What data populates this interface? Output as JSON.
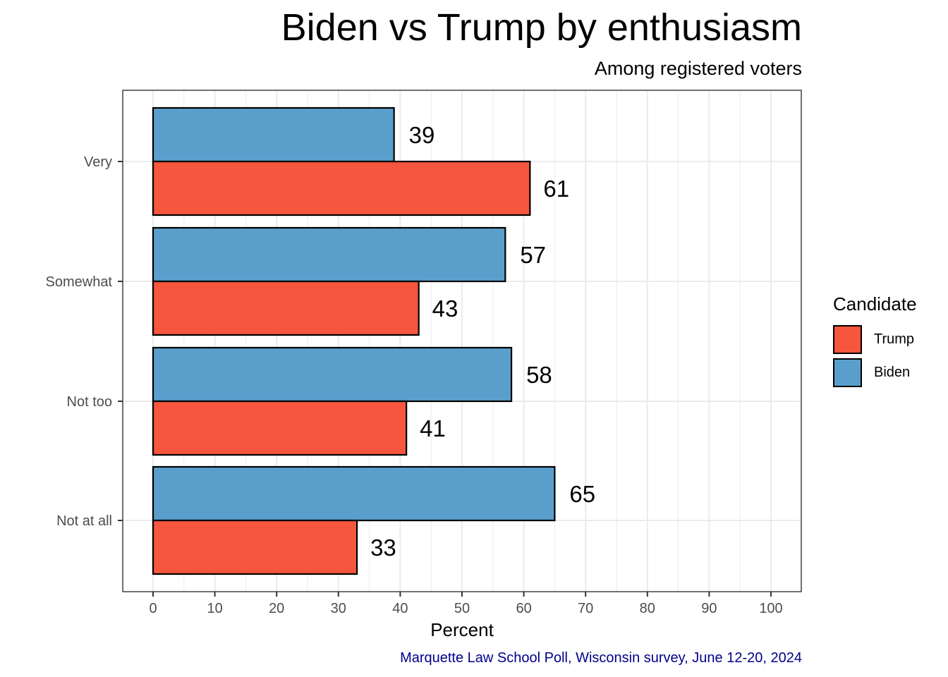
{
  "chart_data": {
    "type": "bar",
    "orientation": "horizontal",
    "title": "Biden vs Trump by enthusiasm",
    "subtitle": "Among registered voters",
    "caption": "Marquette Law School Poll, Wisconsin survey, June 12-20, 2024",
    "xlabel": "Percent",
    "ylabel": "",
    "xlim": [
      0,
      100
    ],
    "xticks": [
      0,
      10,
      20,
      30,
      40,
      50,
      60,
      70,
      80,
      90,
      100
    ],
    "categories": [
      "Very",
      "Somewhat",
      "Not too",
      "Not at all"
    ],
    "series": [
      {
        "name": "Biden",
        "color": "#5a9fcc",
        "values": [
          39,
          57,
          58,
          65
        ]
      },
      {
        "name": "Trump",
        "color": "#f5563d",
        "values": [
          61,
          43,
          41,
          33
        ]
      }
    ],
    "legend": {
      "title": "Candidate",
      "position": "right",
      "entries": [
        {
          "label": "Trump",
          "color": "#f5563d"
        },
        {
          "label": "Biden",
          "color": "#5a9fcc"
        }
      ]
    },
    "grid": true,
    "colors": {
      "caption": "#00008b",
      "panel_border": "#333333",
      "grid": "#ebebeb"
    }
  }
}
